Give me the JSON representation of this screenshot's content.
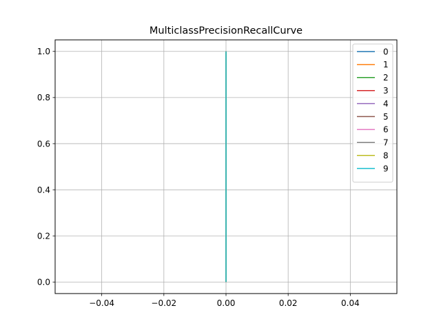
{
  "chart_data": {
    "type": "line",
    "title": "MulticlassPrecisionRecallCurve",
    "xlabel": "",
    "ylabel": "",
    "xlim": [
      -0.055,
      0.055
    ],
    "ylim": [
      -0.05,
      1.05
    ],
    "xticks": [
      -0.04,
      -0.02,
      0.0,
      0.02,
      0.04
    ],
    "xtick_labels": [
      "−0.04",
      "−0.02",
      "0.00",
      "0.02",
      "0.04"
    ],
    "yticks": [
      0.0,
      0.2,
      0.4,
      0.6,
      0.8,
      1.0
    ],
    "ytick_labels": [
      "0.0",
      "0.2",
      "0.4",
      "0.6",
      "0.8",
      "1.0"
    ],
    "grid": true,
    "legend_position": "top-right",
    "series": [
      {
        "name": "0",
        "color": "#1f77b4",
        "x": [
          0.0,
          0.0
        ],
        "y": [
          0.0,
          1.0
        ]
      },
      {
        "name": "1",
        "color": "#ff7f0e",
        "x": [
          0.0,
          0.0
        ],
        "y": [
          0.0,
          1.0
        ]
      },
      {
        "name": "2",
        "color": "#2ca02c",
        "x": [
          0.0,
          0.0
        ],
        "y": [
          0.0,
          1.0
        ]
      },
      {
        "name": "3",
        "color": "#d62728",
        "x": [
          0.0,
          0.0
        ],
        "y": [
          0.0,
          1.0
        ]
      },
      {
        "name": "4",
        "color": "#9467bd",
        "x": [
          0.0,
          0.0
        ],
        "y": [
          0.0,
          1.0
        ]
      },
      {
        "name": "5",
        "color": "#8c564b",
        "x": [
          0.0,
          0.0
        ],
        "y": [
          0.0,
          1.0
        ]
      },
      {
        "name": "6",
        "color": "#e377c2",
        "x": [
          0.0,
          0.0
        ],
        "y": [
          0.0,
          1.0
        ]
      },
      {
        "name": "7",
        "color": "#7f7f7f",
        "x": [
          0.0,
          0.0
        ],
        "y": [
          0.0,
          1.0
        ]
      },
      {
        "name": "8",
        "color": "#bcbd22",
        "x": [
          0.0,
          0.0
        ],
        "y": [
          0.0,
          1.0
        ]
      },
      {
        "name": "9",
        "color": "#17becf",
        "x": [
          0.0,
          0.0
        ],
        "y": [
          0.0,
          1.0
        ]
      }
    ]
  }
}
